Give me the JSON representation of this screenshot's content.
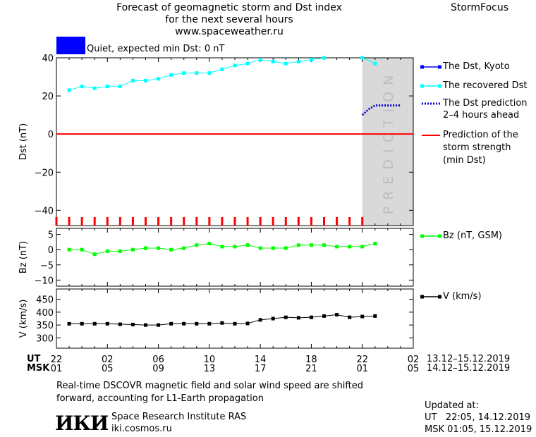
{
  "header": {
    "title_line1": "Forecast of geomagnetic storm and Dst index",
    "title_line2": "for the next several hours",
    "website": "www.spaceweather.ru",
    "brand": "StormFocus"
  },
  "status": {
    "text": "Quiet, expected min Dst: 0 nT",
    "color": "#0000ff"
  },
  "legend": {
    "dst_kyoto": "The Dst, Kyoto",
    "dst_recovered": "The recovered Dst",
    "dst_prediction_line1": "The Dst prediction",
    "dst_prediction_line2": "2–4 hours ahead",
    "storm_line1": "Prediction of the",
    "storm_line2": "storm strength",
    "storm_line3": "(min Dst)",
    "bz": "Bz (nT, GSM)",
    "v": "V (km/s)"
  },
  "colors": {
    "recovered": "#00ffff",
    "kyoto": "#0000ff",
    "prediction": "#0000cc",
    "storm": "#ff0000",
    "bz": "#00ff00",
    "v": "#000000",
    "prediction_band": "#d9d9d9"
  },
  "time_axis": {
    "ut_label": "UT",
    "msk_label": "MSK",
    "ut_ticks": [
      "22",
      "02",
      "06",
      "10",
      "14",
      "18",
      "22",
      "02"
    ],
    "msk_ticks": [
      "01",
      "05",
      "09",
      "13",
      "17",
      "21",
      "01",
      "05"
    ],
    "ut_range": "13.12–15.12.2019",
    "msk_range": "14.12–15.12.2019"
  },
  "footer": {
    "note_line1": "Real-time DSCOVR magnetic field and solar wind speed are shifted",
    "note_line2": "forward, accounting for L1-Earth propagation",
    "institute": "Space Research Institute RAS",
    "site": "iki.cosmos.ru",
    "logo_text": "ИКИ",
    "updated_label": "Updated at:",
    "updated_ut": "UT   22:05, 14.12.2019",
    "updated_msk": "MSK 01:05, 15.12.2019"
  },
  "chart_data": [
    {
      "type": "line",
      "ylabel": "Dst (nT)",
      "ylim": [
        -48,
        40
      ],
      "yticks": [
        40,
        20,
        0,
        -20,
        -40
      ],
      "xlim": [
        0,
        28
      ],
      "prediction_band_x": [
        24,
        28
      ],
      "prediction_band_label": "PREDICTION",
      "storm_strength_y": 0,
      "storm_marker_x": [
        0,
        1,
        2,
        3,
        4,
        5,
        6,
        7,
        8,
        9,
        10,
        11,
        12,
        13,
        14,
        15,
        16,
        17,
        18,
        19,
        20,
        21,
        22,
        23,
        24
      ],
      "series": [
        {
          "name": "The recovered Dst",
          "x": [
            1,
            2,
            3,
            4,
            5,
            6,
            7,
            8,
            9,
            10,
            11,
            12,
            13,
            14,
            15,
            16,
            17,
            18,
            19,
            20,
            21,
            24,
            25
          ],
          "values": [
            23,
            25,
            24,
            25,
            25,
            28,
            28,
            29,
            31,
            32,
            32,
            32,
            34,
            36,
            37,
            39,
            38,
            37,
            38,
            39,
            40,
            40,
            37
          ]
        },
        {
          "name": "The Dst prediction 2–4 hours ahead",
          "x": [
            24,
            24.5,
            25,
            25.5,
            26,
            26.5,
            27
          ],
          "values": [
            10,
            13,
            15,
            15,
            15,
            15,
            15
          ]
        }
      ]
    },
    {
      "type": "line",
      "ylabel": "Bz (nT)",
      "ylim": [
        -12,
        7
      ],
      "yticks": [
        5,
        0,
        -5,
        -10
      ],
      "series": [
        {
          "name": "Bz (nT, GSM)",
          "x": [
            1,
            2,
            3,
            4,
            5,
            6,
            7,
            8,
            9,
            10,
            11,
            12,
            13,
            14,
            15,
            16,
            17,
            18,
            19,
            20,
            21,
            22,
            23,
            24,
            25
          ],
          "values": [
            0,
            0,
            -1.5,
            -0.5,
            -0.5,
            0,
            0.5,
            0.5,
            0,
            0.5,
            1.5,
            2,
            1,
            1,
            1.5,
            0.5,
            0.5,
            0.5,
            1.5,
            1.5,
            1.5,
            1,
            1,
            1,
            2
          ]
        }
      ]
    },
    {
      "type": "line",
      "ylabel": "V (km/s)",
      "ylim": [
        260,
        490
      ],
      "yticks": [
        450,
        400,
        350,
        300
      ],
      "series": [
        {
          "name": "V (km/s)",
          "x": [
            1,
            2,
            3,
            4,
            5,
            6,
            7,
            8,
            9,
            10,
            11,
            12,
            13,
            14,
            15,
            16,
            17,
            18,
            19,
            20,
            21,
            22,
            23,
            24,
            25
          ],
          "values": [
            355,
            355,
            355,
            355,
            353,
            352,
            350,
            350,
            355,
            355,
            355,
            355,
            358,
            355,
            356,
            370,
            375,
            380,
            378,
            380,
            385,
            390,
            380,
            383,
            385
          ]
        }
      ]
    }
  ]
}
